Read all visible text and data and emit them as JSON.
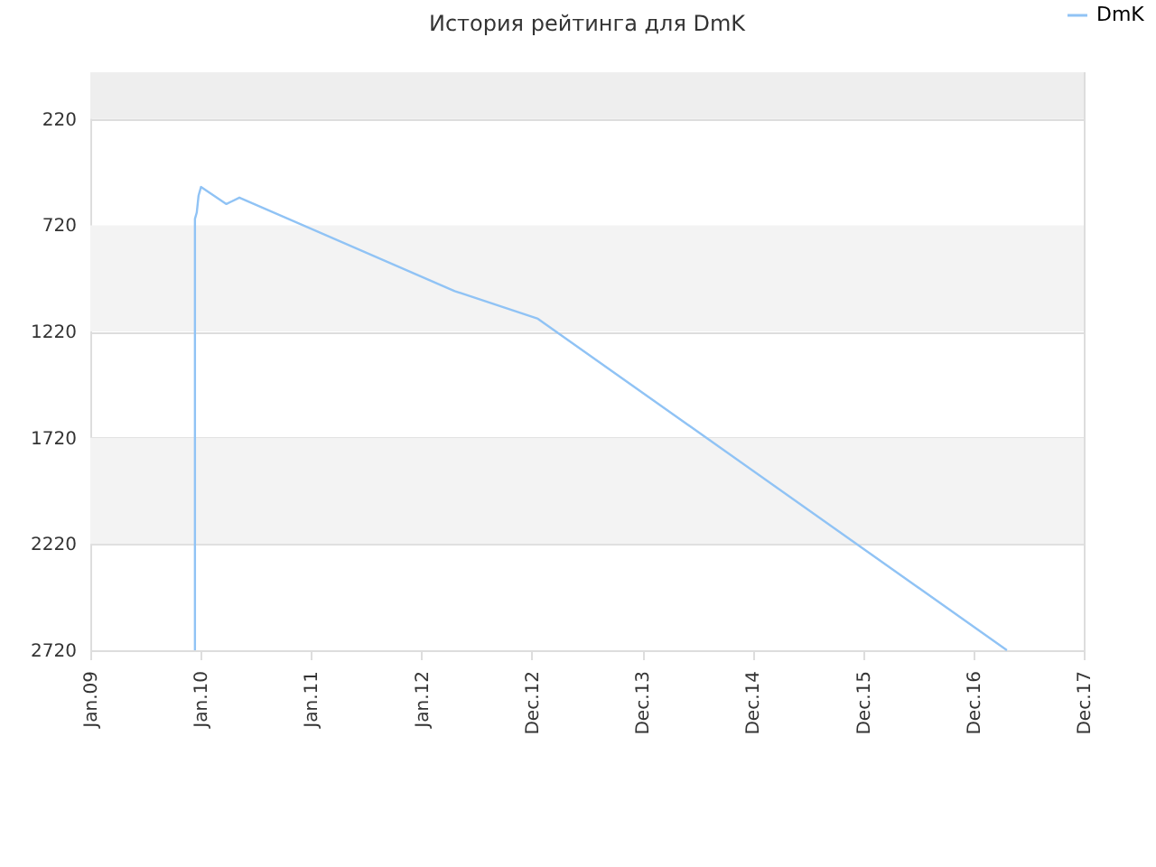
{
  "chart_data": {
    "type": "line",
    "title": "История рейтинга для DmK",
    "x": [
      "2009-12-13",
      "2009-12-13",
      "2009-12-19",
      "2009-12-25",
      "2010-01-02",
      "2010-03-27",
      "2010-05-09",
      "2012-04-20",
      "2013-01-20",
      "2017-04-20"
    ],
    "series": [
      {
        "name": "DmK",
        "color": "#90c3f5",
        "values": [
          2720,
          690,
          660,
          580,
          540,
          620,
          590,
          1030,
          1160,
          2720
        ]
      }
    ],
    "xlim": [
      "2009-01-01",
      "2017-12-30"
    ],
    "xticks": [
      {
        "value": "2009-01-01",
        "label": "Jan.09"
      },
      {
        "value": "2010-01-01",
        "label": "Jan.10"
      },
      {
        "value": "2011-01-01",
        "label": "Jan.11"
      },
      {
        "value": "2012-01-01",
        "label": "Jan.12"
      },
      {
        "value": "2012-12-31",
        "label": "Dec.12"
      },
      {
        "value": "2013-12-31",
        "label": "Dec.13"
      },
      {
        "value": "2014-12-31",
        "label": "Dec.14"
      },
      {
        "value": "2015-12-31",
        "label": "Dec.15"
      },
      {
        "value": "2016-12-30",
        "label": "Dec.16"
      },
      {
        "value": "2017-12-30",
        "label": "Dec.17"
      }
    ],
    "ylim": [
      2720,
      0
    ],
    "yticks": [
      220,
      720,
      1220,
      1720,
      2220,
      2720
    ],
    "bands": [
      {
        "axis": "y",
        "from": 0,
        "to": 220,
        "color": "#eeeeee"
      },
      {
        "axis": "y",
        "from": 720,
        "to": 1220,
        "color": "#f3f3f3"
      },
      {
        "axis": "y",
        "from": 1720,
        "to": 2220,
        "color": "#f3f3f3"
      }
    ],
    "grid": "y",
    "legend": "top right",
    "marker": "none",
    "line_style": "solid"
  }
}
